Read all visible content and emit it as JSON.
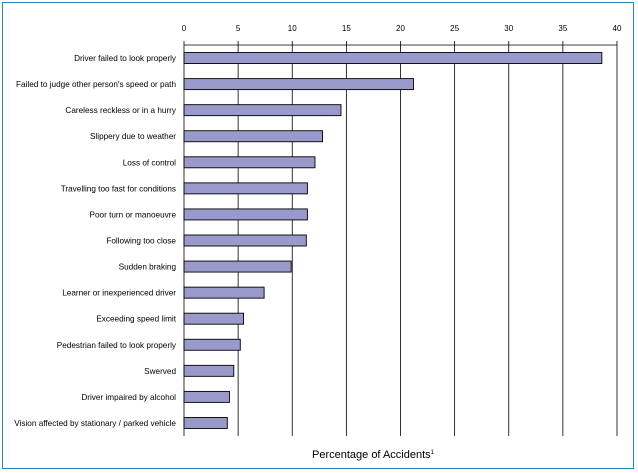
{
  "chart_data": {
    "type": "bar",
    "orientation": "horizontal",
    "title": "",
    "xlabel": "Percentage of Accidents",
    "xlabel_superscript": "1",
    "ylabel": "",
    "xlim": [
      0,
      40
    ],
    "xticks": [
      "0",
      "5",
      "10",
      "15",
      "20",
      "25",
      "30",
      "35",
      "40"
    ],
    "grid": "vertical",
    "categories": [
      "Driver failed to look properly",
      "Failed to judge other person's speed or path",
      "Careless reckless or in a hurry",
      "Slippery due to weather",
      "Loss of control",
      "Travelling too fast for conditions",
      "Poor turn or manoeuvre",
      "Following too close",
      "Sudden braking",
      "Learner or inexperienced driver",
      "Exceeding speed limit",
      "Pedestrian failed to look properly",
      "Swerved",
      "Driver impaired by alcohol",
      "Vision affected by stationary / parked vehicle"
    ],
    "values": [
      38.6,
      21.2,
      14.5,
      12.8,
      12.1,
      11.4,
      11.4,
      11.3,
      9.9,
      7.4,
      5.5,
      5.2,
      4.6,
      4.2,
      4.0
    ],
    "colors": {
      "bar": "#9999cc",
      "bar_edge": "#000000",
      "frame": "#2a86b6",
      "grid": "#000000"
    }
  }
}
